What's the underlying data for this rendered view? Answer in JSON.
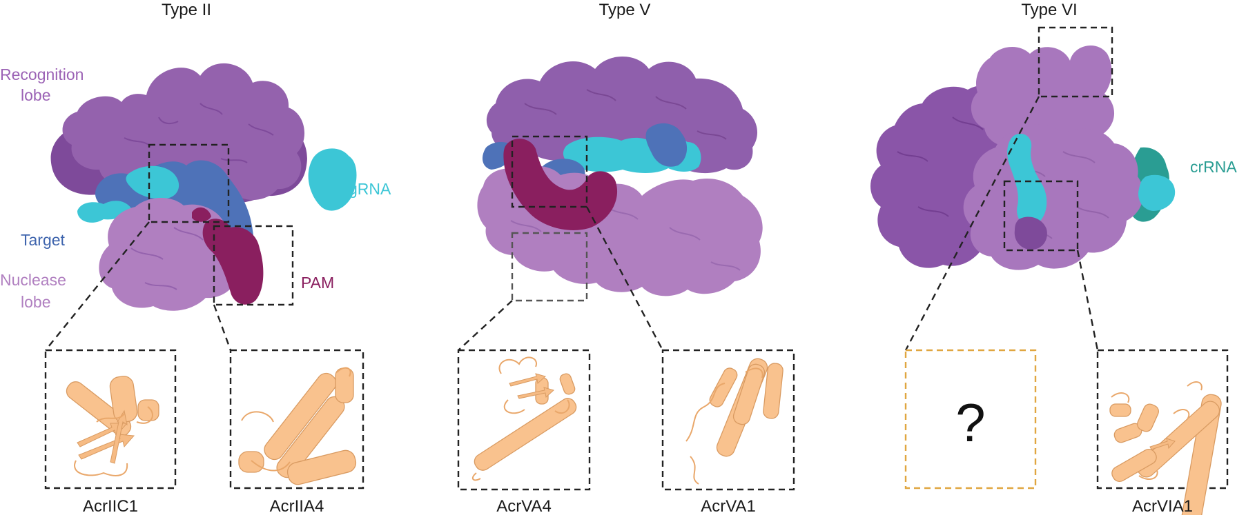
{
  "panels": {
    "type2": {
      "title": "Type II",
      "labels": {
        "recognition_line1": "Recognition",
        "recognition_line2": "lobe",
        "grna": "gRNA",
        "target": "Target",
        "nuclease_line1": "Nuclease",
        "nuclease_line2": "lobe",
        "pam": "PAM"
      },
      "insets": [
        "AcrIIC1",
        "AcrIIA4"
      ]
    },
    "type5": {
      "title": "Type V",
      "insets": [
        "AcrVA4",
        "AcrVA1"
      ]
    },
    "type6": {
      "title": "Type VI",
      "labels": {
        "crrna": "crRNA"
      },
      "unknown_mark": "?",
      "insets": [
        "AcrVIA1"
      ]
    }
  },
  "colors": {
    "recognition_lobe": "#9462ad",
    "recognition_dark": "#7e4a9a",
    "nuclease_lobe": "#b07fc0",
    "target_strand": "#4e72b8",
    "grna": "#3cc6d6",
    "crrna": "#2a9d93",
    "pam": "#8a1f5f",
    "inhibitor_protein": "#f9c28e",
    "unknown_box": "#e0a640",
    "label_recognition": "#9b62b5",
    "label_target": "#3e64ad"
  },
  "icons": {
    "protein_surfaces": "cas-complex-surface-icon",
    "inhibitor_cartoons": "protein-cartoon-icon"
  }
}
